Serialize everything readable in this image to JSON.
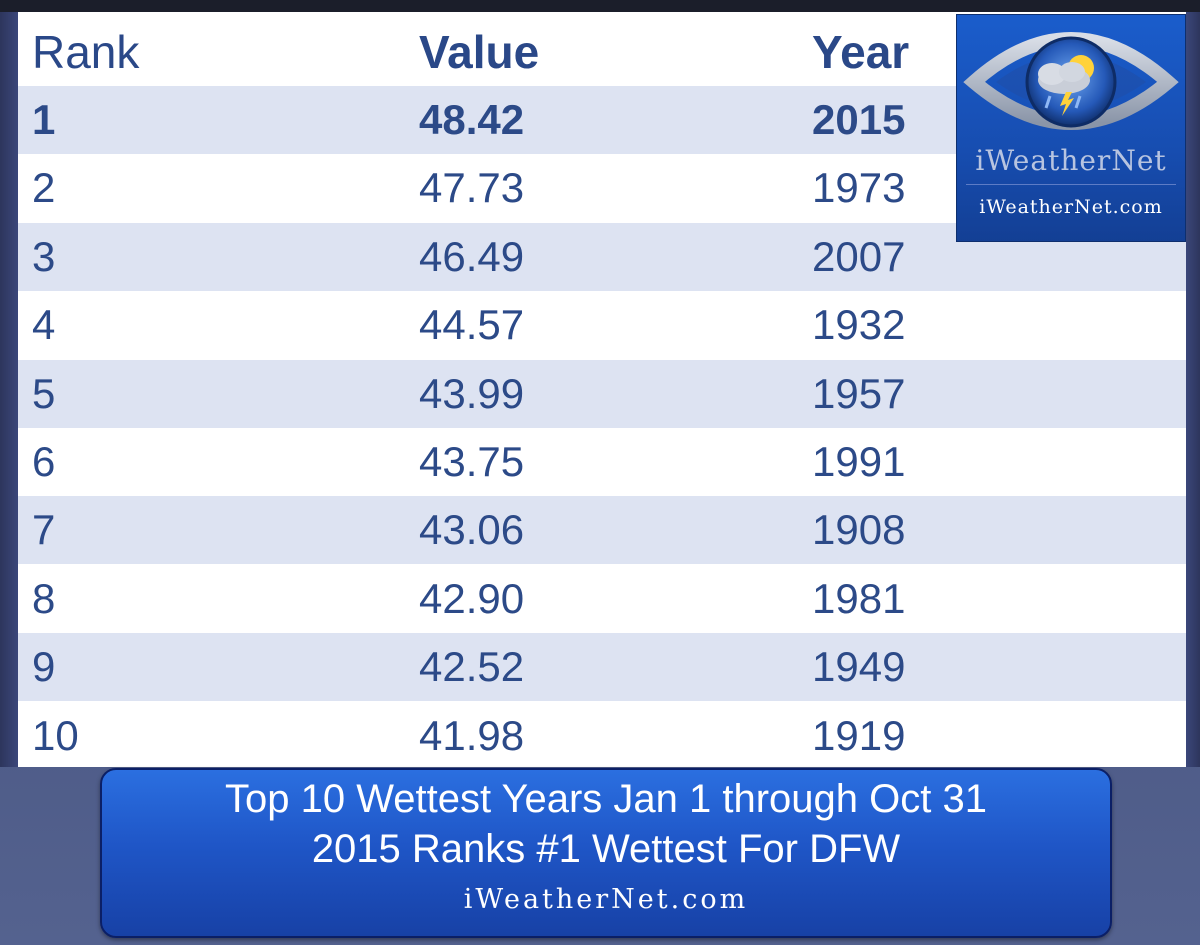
{
  "chart_data": {
    "type": "table",
    "columns": [
      "Rank",
      "Value",
      "Year"
    ],
    "rows": [
      [
        "1",
        "48.42",
        "2015"
      ],
      [
        "2",
        "47.73",
        "1973"
      ],
      [
        "3",
        "46.49",
        "2007"
      ],
      [
        "4",
        "44.57",
        "1932"
      ],
      [
        "5",
        "43.99",
        "1957"
      ],
      [
        "6",
        "43.75",
        "1991"
      ],
      [
        "7",
        "43.06",
        "1908"
      ],
      [
        "8",
        "42.90",
        "1981"
      ],
      [
        "9",
        "42.52",
        "1949"
      ],
      [
        "10",
        "41.98",
        "1919"
      ]
    ],
    "caption": {
      "line1": "Top 10 Wettest Years Jan 1 through Oct 31",
      "line2": "2015 Ranks #1 Wettest For DFW"
    }
  },
  "logo": {
    "name": "iWeatherNet",
    "url": "iWeatherNet.com"
  },
  "footer": {
    "url": "iWeatherNet.com"
  },
  "colors": {
    "header_text": "#2a4888",
    "row_shade": "#dde3f2",
    "caption_blue": "#1f56c7"
  }
}
